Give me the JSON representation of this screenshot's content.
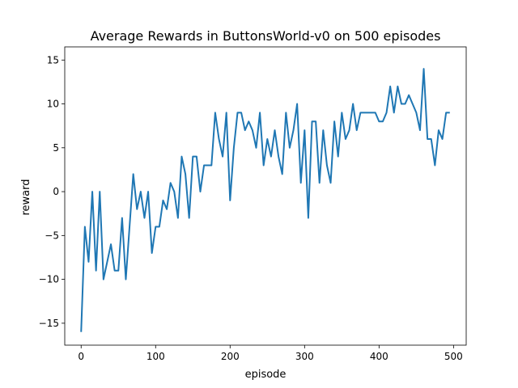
{
  "chart_data": {
    "type": "line",
    "title": "Average Rewards in ButtonsWorld-v0 on 500 episodes",
    "xlabel": "episode",
    "ylabel": "reward",
    "xlim": [
      -22,
      517
    ],
    "ylim": [
      -17.5,
      16.5
    ],
    "grid": false,
    "legend": "none",
    "line_color": "#1f77b4",
    "x_ticks": [
      0,
      100,
      200,
      300,
      400,
      500
    ],
    "y_ticks": [
      -15,
      -10,
      -5,
      0,
      5,
      10,
      15
    ],
    "x_tick_labels": [
      "0",
      "100",
      "200",
      "300",
      "400",
      "500"
    ],
    "y_tick_labels": [
      "−15",
      "−10",
      "−5",
      "0",
      "5",
      "10",
      "15"
    ],
    "series": [
      {
        "x": [
          0,
          5,
          10,
          15,
          20,
          25,
          30,
          35,
          40,
          45,
          50,
          55,
          60,
          65,
          70,
          75,
          80,
          85,
          90,
          95,
          100,
          105,
          110,
          115,
          120,
          125,
          130,
          135,
          140,
          145,
          150,
          155,
          160,
          165,
          170,
          175,
          180,
          185,
          190,
          195,
          200,
          205,
          210,
          215,
          220,
          225,
          230,
          235,
          240,
          245,
          250,
          255,
          260,
          265,
          270,
          275,
          280,
          285,
          290,
          295,
          300,
          305,
          310,
          315,
          320,
          325,
          330,
          335,
          340,
          345,
          350,
          355,
          360,
          365,
          370,
          375,
          380,
          385,
          390,
          395,
          400,
          405,
          410,
          415,
          420,
          425,
          430,
          435,
          440,
          445,
          450,
          455,
          460,
          465,
          470,
          475,
          480,
          485,
          490,
          495
        ],
        "values": [
          -16,
          -4,
          -8,
          0,
          -9,
          0,
          -10,
          -8,
          -6,
          -9,
          -9,
          -3,
          -10,
          -4,
          2,
          -2,
          0,
          -3,
          0,
          -7,
          -4,
          -4,
          -1,
          -2,
          1,
          0,
          -3,
          4,
          2,
          -3,
          4,
          4,
          0,
          3,
          3,
          3,
          9,
          6,
          4,
          9,
          -1,
          5,
          9,
          9,
          7,
          8,
          7,
          5,
          9,
          3,
          6,
          4,
          7,
          4,
          2,
          9,
          5,
          7,
          10,
          1,
          7,
          -3,
          8,
          8,
          1,
          7,
          3,
          1,
          8,
          4,
          9,
          6,
          7,
          10,
          7,
          9,
          9,
          9,
          9,
          9,
          8,
          8,
          9,
          12,
          9,
          12,
          10,
          10,
          11,
          10,
          9,
          7,
          14,
          6,
          6,
          3,
          7,
          6,
          9,
          9
        ]
      }
    ]
  }
}
